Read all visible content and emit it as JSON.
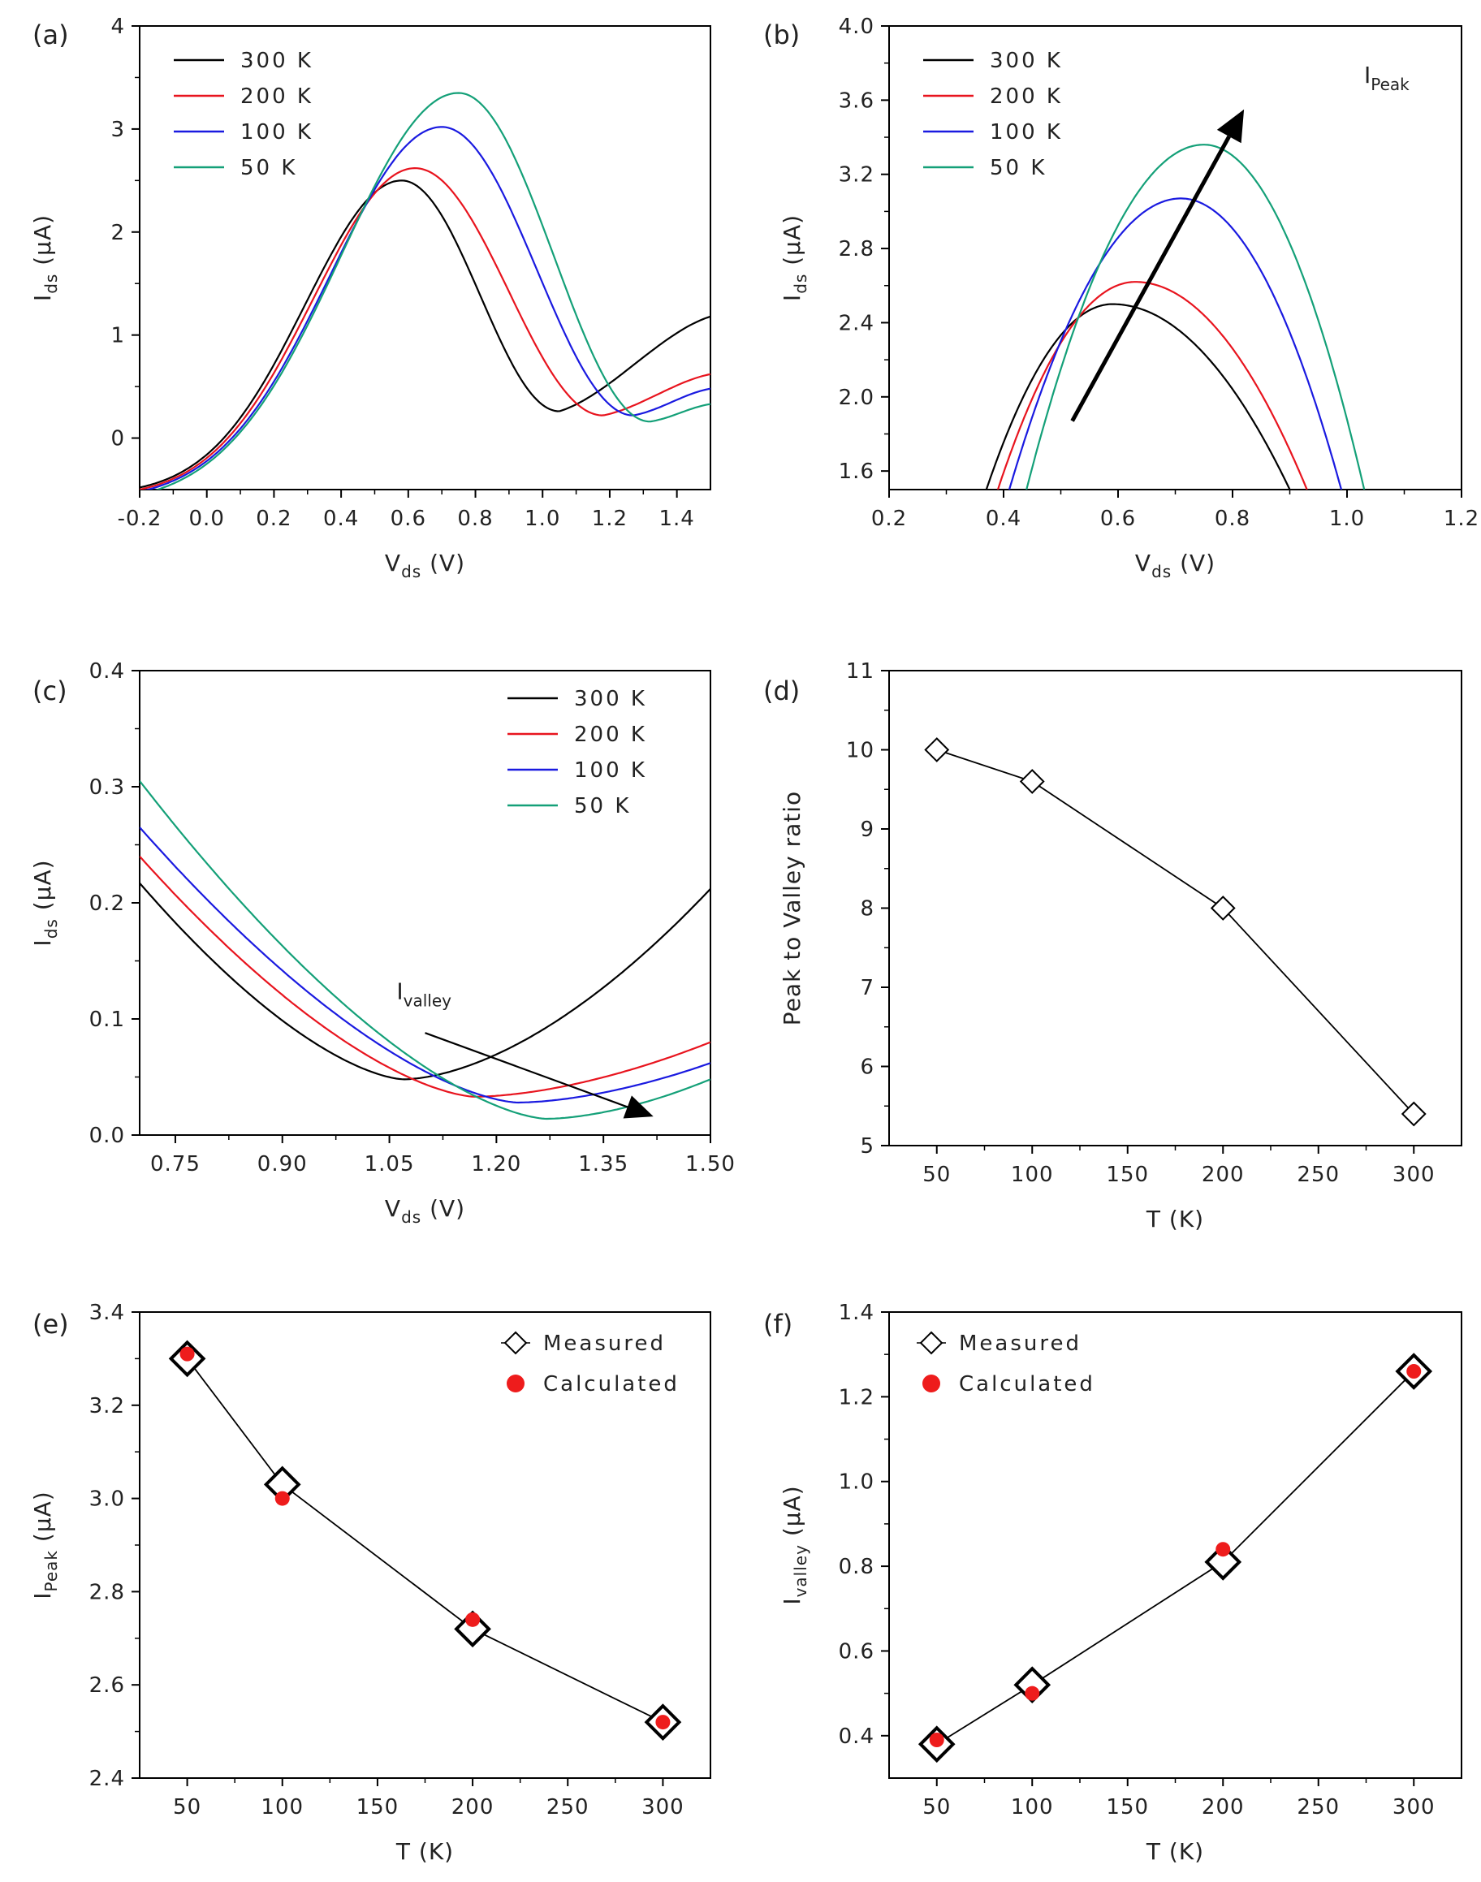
{
  "chart_data": [
    {
      "id": "a",
      "panel_label": "(a)",
      "type": "line",
      "xlabel_main": "V",
      "xlabel_sub": "ds",
      "xlabel_unit": " (V)",
      "ylabel_main": "I",
      "ylabel_sub": "ds",
      "ylabel_unit": " (μA)",
      "xlim": [
        -0.2,
        1.5
      ],
      "ylim": [
        -0.5,
        4
      ],
      "xticks": [
        -0.2,
        0.0,
        0.2,
        0.4,
        0.6,
        0.8,
        1.0,
        1.2,
        1.4
      ],
      "xtick_labels": [
        "-0.2",
        "0.0",
        "0.2",
        "0.4",
        "0.6",
        "0.8",
        "1.0",
        "1.2",
        "1.4"
      ],
      "yticks": [
        0,
        1,
        2,
        3,
        4
      ],
      "ytick_labels": [
        "0",
        "1",
        "2",
        "3",
        "4"
      ],
      "legend_position": "top-left",
      "series": [
        {
          "name": "300 K",
          "color": "#000000",
          "peak": [
            0.58,
            2.5
          ],
          "valley": [
            1.05,
            0.26
          ],
          "end": [
            1.5,
            1.18
          ],
          "start": -0.48
        },
        {
          "name": "200 K",
          "color": "#e8141e",
          "peak": [
            0.62,
            2.62
          ],
          "valley": [
            1.18,
            0.22
          ],
          "end": [
            1.5,
            0.62
          ],
          "start": -0.5
        },
        {
          "name": "100 K",
          "color": "#1a1ae0",
          "peak": [
            0.7,
            3.02
          ],
          "valley": [
            1.27,
            0.22
          ],
          "end": [
            1.5,
            0.48
          ],
          "start": -0.52
        },
        {
          "name": "50 K",
          "color": "#14a078",
          "peak": [
            0.75,
            3.35
          ],
          "valley": [
            1.32,
            0.16
          ],
          "end": [
            1.5,
            0.33
          ],
          "start": -0.55
        }
      ]
    },
    {
      "id": "b",
      "panel_label": "(b)",
      "type": "line",
      "xlabel_main": "V",
      "xlabel_sub": "ds",
      "xlabel_unit": " (V)",
      "ylabel_main": "I",
      "ylabel_sub": "ds",
      "ylabel_unit": " (μA)",
      "xlim": [
        0.2,
        1.2
      ],
      "ylim": [
        1.5,
        4.0
      ],
      "xticks": [
        0.2,
        0.4,
        0.6,
        0.8,
        1.0,
        1.2
      ],
      "xtick_labels": [
        "0.2",
        "0.4",
        "0.6",
        "0.8",
        "1.0",
        "1.2"
      ],
      "yticks": [
        1.6,
        2.0,
        2.4,
        2.8,
        3.2,
        3.6,
        4.0
      ],
      "ytick_labels": [
        "1.6",
        "2.0",
        "2.4",
        "2.8",
        "3.2",
        "3.6",
        "4.0"
      ],
      "legend_position": "top-left",
      "annotation_main": "I",
      "annotation_sub": "Peak",
      "arrow": {
        "from": [
          0.52,
          1.87
        ],
        "to": [
          0.82,
          3.55
        ]
      },
      "series": [
        {
          "name": "300 K",
          "color": "#000000",
          "peak": [
            0.59,
            2.5
          ],
          "left": 0.37,
          "right": 0.9
        },
        {
          "name": "200 K",
          "color": "#e8141e",
          "peak": [
            0.63,
            2.62
          ],
          "left": 0.39,
          "right": 0.93
        },
        {
          "name": "100 K",
          "color": "#1a1ae0",
          "peak": [
            0.71,
            3.07
          ],
          "left": 0.41,
          "right": 0.99
        },
        {
          "name": "50 K",
          "color": "#14a078",
          "peak": [
            0.75,
            3.36
          ],
          "left": 0.44,
          "right": 1.03
        }
      ]
    },
    {
      "id": "c",
      "panel_label": "(c)",
      "type": "line",
      "xlabel_main": "V",
      "xlabel_sub": "ds",
      "xlabel_unit": " (V)",
      "ylabel_main": "I",
      "ylabel_sub": "ds",
      "ylabel_unit": " (μA)",
      "xlim": [
        0.7,
        1.5
      ],
      "ylim": [
        0.0,
        0.4
      ],
      "xticks": [
        0.75,
        0.9,
        1.05,
        1.2,
        1.35,
        1.5
      ],
      "xtick_labels": [
        "0.75",
        "0.90",
        "1.05",
        "1.20",
        "1.35",
        "1.50"
      ],
      "yticks": [
        0.0,
        0.1,
        0.2,
        0.3,
        0.4
      ],
      "ytick_labels": [
        "0.0",
        "0.1",
        "0.2",
        "0.3",
        "0.4"
      ],
      "legend_position": "top-right",
      "annotation_main": "I",
      "annotation_sub": "valley",
      "arrow": {
        "from": [
          1.1,
          0.088
        ],
        "to": [
          1.42,
          0.016
        ]
      },
      "series": [
        {
          "name": "300 K",
          "color": "#000000",
          "start": 0.217,
          "valley": [
            1.07,
            0.048
          ],
          "end": 0.212
        },
        {
          "name": "200 K",
          "color": "#e8141e",
          "start": 0.24,
          "valley": [
            1.17,
            0.033
          ],
          "end": 0.08
        },
        {
          "name": "100 K",
          "color": "#1a1ae0",
          "start": 0.265,
          "valley": [
            1.23,
            0.028
          ],
          "end": 0.062
        },
        {
          "name": "50 K",
          "color": "#14a078",
          "start": 0.305,
          "valley": [
            1.27,
            0.014
          ],
          "end": 0.048
        }
      ]
    },
    {
      "id": "d",
      "panel_label": "(d)",
      "type": "line",
      "xlabel": "T (K)",
      "ylabel": "Peak to Valley ratio",
      "xlim": [
        25,
        325
      ],
      "ylim": [
        5,
        11
      ],
      "xticks": [
        50,
        100,
        150,
        200,
        250,
        300
      ],
      "xtick_labels": [
        "50",
        "100",
        "150",
        "200",
        "250",
        "300"
      ],
      "yticks": [
        5,
        6,
        7,
        8,
        9,
        10,
        11
      ],
      "ytick_labels": [
        "5",
        "6",
        "7",
        "8",
        "9",
        "10",
        "11"
      ],
      "x": [
        50,
        100,
        200,
        300
      ],
      "values": [
        10.0,
        9.6,
        8.0,
        5.4
      ]
    },
    {
      "id": "e",
      "panel_label": "(e)",
      "type": "scatter",
      "xlabel": "T (K)",
      "ylabel_main": "I",
      "ylabel_sub": "Peak",
      "ylabel_unit": " (μA)",
      "xlim": [
        25,
        325
      ],
      "ylim": [
        2.4,
        3.4
      ],
      "xticks": [
        50,
        100,
        150,
        200,
        250,
        300
      ],
      "xtick_labels": [
        "50",
        "100",
        "150",
        "200",
        "250",
        "300"
      ],
      "yticks": [
        2.4,
        2.6,
        2.8,
        3.0,
        3.2,
        3.4
      ],
      "ytick_labels": [
        "2.4",
        "2.6",
        "2.8",
        "3.0",
        "3.2",
        "3.4"
      ],
      "legend_position": "top-right",
      "x": [
        50,
        100,
        200,
        300
      ],
      "series": [
        {
          "name": "Measured",
          "values": [
            3.3,
            3.03,
            2.72,
            2.52
          ]
        },
        {
          "name": "Calculated",
          "values": [
            3.31,
            3.0,
            2.74,
            2.52
          ]
        }
      ]
    },
    {
      "id": "f",
      "panel_label": "(f)",
      "type": "scatter",
      "xlabel": "T (K)",
      "ylabel_main": "I",
      "ylabel_sub": "valley",
      "ylabel_unit": " (μA)",
      "xlim": [
        25,
        325
      ],
      "ylim": [
        0.3,
        1.4
      ],
      "xticks": [
        50,
        100,
        150,
        200,
        250,
        300
      ],
      "xtick_labels": [
        "50",
        "100",
        "150",
        "200",
        "250",
        "300"
      ],
      "yticks": [
        0.4,
        0.6,
        0.8,
        1.0,
        1.2,
        1.4
      ],
      "ytick_labels": [
        "0.4",
        "0.6",
        "0.8",
        "1.0",
        "1.2",
        "1.4"
      ],
      "legend_position": "top-left",
      "x": [
        50,
        100,
        200,
        300
      ],
      "series": [
        {
          "name": "Measured",
          "values": [
            0.38,
            0.52,
            0.81,
            1.26
          ]
        },
        {
          "name": "Calculated",
          "values": [
            0.39,
            0.5,
            0.84,
            1.26
          ]
        }
      ]
    }
  ],
  "colors": {
    "measured_marker": "#000000",
    "calculated_marker": "#ee1c1c",
    "arrow": "#000000"
  }
}
